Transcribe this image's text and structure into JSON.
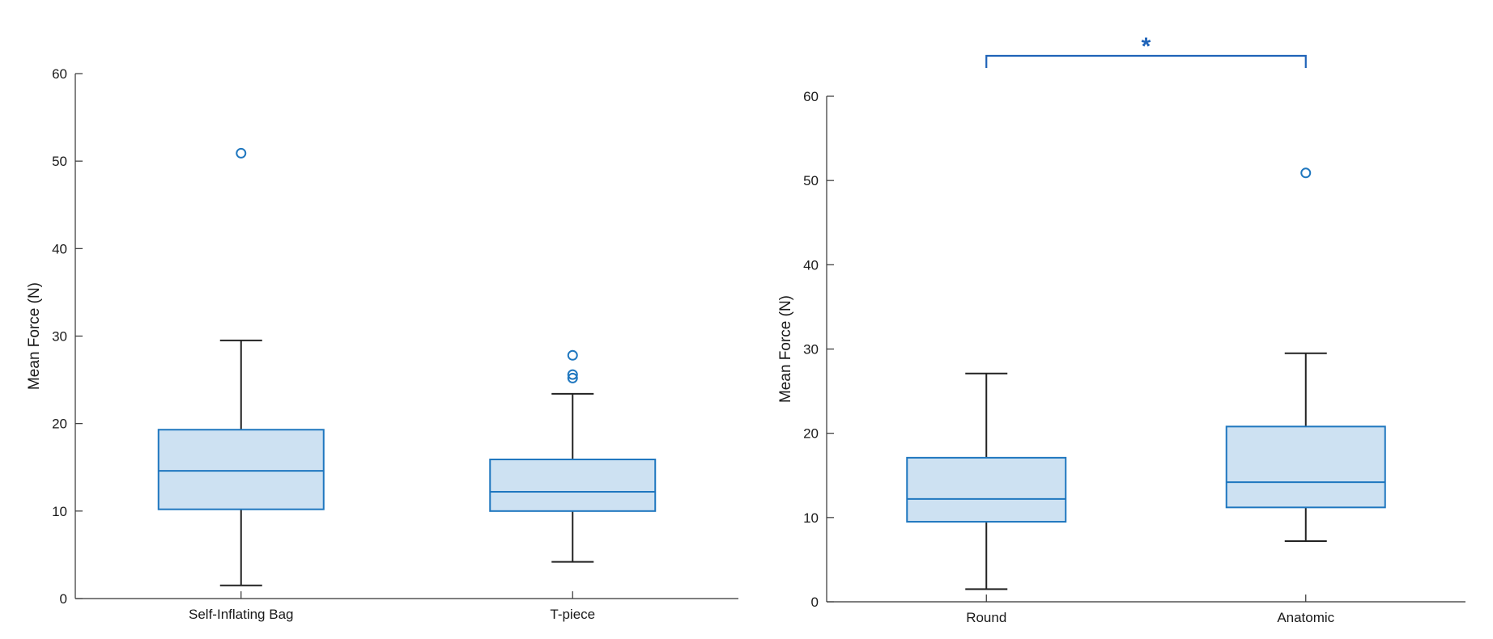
{
  "chart_data": [
    {
      "type": "box",
      "ylabel": "Mean Force (N)",
      "ylim": [
        0,
        60
      ],
      "yticks": [
        0,
        10,
        20,
        30,
        40,
        50,
        60
      ],
      "categories": [
        "Self-Inflating Bag",
        "T-piece"
      ],
      "boxes": [
        {
          "category": "Self-Inflating Bag",
          "whisker_low": 1.5,
          "q1": 10.2,
          "median": 14.6,
          "q3": 19.3,
          "whisker_high": 29.5,
          "outliers": [
            50.9
          ]
        },
        {
          "category": "T-piece",
          "whisker_low": 4.2,
          "q1": 10.0,
          "median": 12.2,
          "q3": 15.9,
          "whisker_high": 23.4,
          "outliers": [
            25.2,
            25.6,
            27.8
          ]
        }
      ],
      "box_color": "#1f77bf",
      "box_fill": "#cde1f2",
      "whisker_color": "#222222",
      "grid": false
    },
    {
      "type": "box",
      "ylabel": "Mean Force (N)",
      "ylim": [
        0,
        60
      ],
      "yticks": [
        0,
        10,
        20,
        30,
        40,
        50,
        60
      ],
      "categories": [
        "Round",
        "Anatomic"
      ],
      "boxes": [
        {
          "category": "Round",
          "whisker_low": 1.5,
          "q1": 9.5,
          "median": 12.2,
          "q3": 17.1,
          "whisker_high": 27.1,
          "outliers": []
        },
        {
          "category": "Anatomic",
          "whisker_low": 7.2,
          "q1": 11.2,
          "median": 14.2,
          "q3": 20.8,
          "whisker_high": 29.5,
          "outliers": [
            50.9
          ]
        }
      ],
      "box_color": "#1f77bf",
      "box_fill": "#cde1f2",
      "whisker_color": "#222222",
      "grid": false,
      "annotations": [
        {
          "text": "*",
          "between": [
            "Round",
            "Anatomic"
          ],
          "color": "#1f63b8"
        }
      ]
    }
  ]
}
